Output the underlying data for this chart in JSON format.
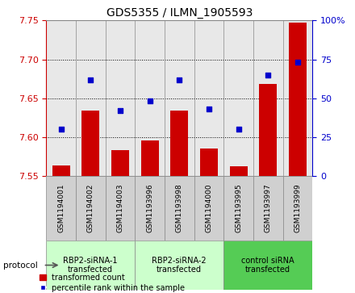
{
  "title": "GDS5355 / ILMN_1905593",
  "samples": [
    "GSM1194001",
    "GSM1194002",
    "GSM1194003",
    "GSM1193996",
    "GSM1193998",
    "GSM1194000",
    "GSM1193995",
    "GSM1193997",
    "GSM1193999"
  ],
  "bar_values": [
    7.563,
    7.634,
    7.583,
    7.596,
    7.634,
    7.585,
    7.562,
    7.668,
    7.747
  ],
  "dot_values": [
    30,
    62,
    42,
    48,
    62,
    43,
    30,
    65,
    73
  ],
  "ylim_left": [
    7.55,
    7.75
  ],
  "ylim_right": [
    0,
    100
  ],
  "yticks_left": [
    7.55,
    7.6,
    7.65,
    7.7,
    7.75
  ],
  "yticks_right": [
    0,
    25,
    50,
    75,
    100
  ],
  "bar_color": "#cc0000",
  "dot_color": "#0000cc",
  "bar_bottom": 7.55,
  "groups": [
    {
      "label": "RBP2-siRNA-1\ntransfected",
      "start": 0,
      "end": 3,
      "color": "#ccffcc"
    },
    {
      "label": "RBP2-siRNA-2\ntransfected",
      "start": 3,
      "end": 6,
      "color": "#ccffcc"
    },
    {
      "label": "control siRNA\ntransfected",
      "start": 6,
      "end": 9,
      "color": "#55cc55"
    }
  ],
  "protocol_label": "protocol",
  "legend_bar_label": "transformed count",
  "legend_dot_label": "percentile rank within the sample",
  "tick_color_left": "#cc0000",
  "tick_color_right": "#0000cc",
  "grid_color": "#000000",
  "background_color": "#ffffff",
  "plot_bg_color": "#e8e8e8",
  "sample_box_color": "#d0d0d0",
  "separator_color": "#888888"
}
